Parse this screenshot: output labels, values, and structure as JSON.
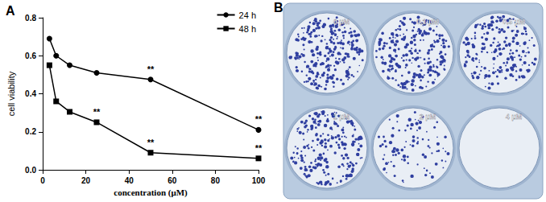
{
  "chart_data": {
    "type": "line",
    "title": "A",
    "x_label": "concentration (μM)",
    "y_label": "cell viability",
    "x": [
      3.125,
      6.25,
      12.5,
      25,
      50,
      100
    ],
    "series": [
      {
        "name": "24 h",
        "color": "#000000",
        "marker": "circle",
        "values": [
          0.69,
          0.6,
          0.55,
          0.51,
          0.475,
          0.21
        ],
        "annotations": [
          null,
          null,
          null,
          null,
          "**",
          "**"
        ]
      },
      {
        "name": "48 h",
        "color": "#000000",
        "marker": "square",
        "values": [
          0.55,
          0.36,
          0.305,
          0.25,
          0.09,
          0.06
        ],
        "annotations": [
          null,
          null,
          null,
          "**",
          "**",
          "**"
        ]
      }
    ],
    "xlim": [
      0,
      100
    ],
    "xticks": [
      0,
      20,
      40,
      60,
      80,
      100
    ],
    "ylim": [
      0,
      0.8
    ],
    "yticks": [
      {
        "value": 0,
        "label": "0.0"
      },
      0.2,
      0.4,
      0.6,
      0.8
    ],
    "grid": false,
    "legend": "upper right"
  },
  "photo": {
    "label": "B",
    "wells": [
      "0 μM",
      "0.1 μM",
      "0.5 μM",
      "1 μM",
      "2 μM",
      "4 μM"
    ]
  }
}
